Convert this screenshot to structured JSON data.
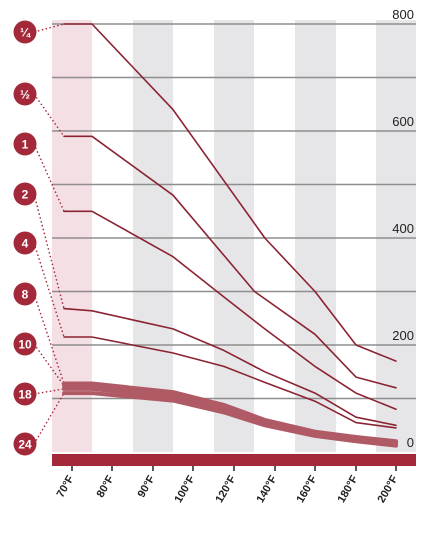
{
  "chart_data": {
    "type": "line",
    "title": "",
    "xlabel": "",
    "ylabel": "",
    "categories": [
      "70°F",
      "80°F",
      "90°F",
      "100°F",
      "120°F",
      "140°F",
      "160°F",
      "180°F",
      "200°F"
    ],
    "x_tick_labels": [
      "70°F",
      "80°F",
      "90°F",
      "100°F",
      "120°F",
      "140°F",
      "160°F",
      "180°F",
      "200°F"
    ],
    "y_tick_labels": [
      "0",
      "200",
      "400",
      "600",
      "800"
    ],
    "ylim": [
      0,
      800
    ],
    "y_axis_side": "right",
    "gridlines": "horizontal",
    "background_bands": "alternating shaded vertical columns",
    "legend": "left badges connected to line starts by dotted leaders",
    "series": [
      {
        "label": "¼",
        "points": [
          [
            68,
            800
          ],
          [
            75,
            800
          ],
          [
            95,
            640
          ],
          [
            135,
            400
          ],
          [
            160,
            300
          ],
          [
            180,
            200
          ],
          [
            200,
            170
          ]
        ]
      },
      {
        "label": "½",
        "points": [
          [
            68,
            590
          ],
          [
            75,
            590
          ],
          [
            95,
            480
          ],
          [
            130,
            300
          ],
          [
            160,
            220
          ],
          [
            180,
            140
          ],
          [
            200,
            120
          ]
        ]
      },
      {
        "label": "1",
        "points": [
          [
            68,
            450
          ],
          [
            75,
            450
          ],
          [
            95,
            365
          ],
          [
            115,
            290
          ],
          [
            135,
            230
          ],
          [
            160,
            160
          ],
          [
            180,
            110
          ],
          [
            200,
            80
          ]
        ]
      },
      {
        "label": "2",
        "points": [
          [
            68,
            268
          ],
          [
            75,
            264
          ],
          [
            95,
            230
          ],
          [
            115,
            190
          ],
          [
            135,
            150
          ],
          [
            160,
            110
          ],
          [
            180,
            65
          ],
          [
            200,
            50
          ]
        ]
      },
      {
        "label": "4",
        "points": [
          [
            68,
            215
          ],
          [
            75,
            215
          ],
          [
            95,
            185
          ],
          [
            115,
            160
          ],
          [
            135,
            130
          ],
          [
            160,
            95
          ],
          [
            180,
            55
          ],
          [
            200,
            45
          ]
        ]
      },
      {
        "label": "8",
        "points": [
          [
            68,
            128
          ],
          [
            75,
            128
          ],
          [
            95,
            112
          ],
          [
            115,
            88
          ],
          [
            135,
            60
          ],
          [
            160,
            38
          ],
          [
            180,
            28
          ],
          [
            200,
            20
          ]
        ]
      },
      {
        "label": "10",
        "points": [
          [
            68,
            124
          ],
          [
            75,
            124
          ],
          [
            95,
            108
          ],
          [
            115,
            84
          ],
          [
            135,
            57
          ],
          [
            160,
            36
          ],
          [
            180,
            26
          ],
          [
            200,
            18
          ]
        ]
      },
      {
        "label": "18",
        "points": [
          [
            68,
            118
          ],
          [
            75,
            118
          ],
          [
            95,
            102
          ],
          [
            115,
            80
          ],
          [
            135,
            55
          ],
          [
            160,
            34
          ],
          [
            180,
            24
          ],
          [
            200,
            16
          ]
        ]
      },
      {
        "label": "24",
        "points": [
          [
            68,
            110
          ],
          [
            75,
            110
          ],
          [
            95,
            96
          ],
          [
            115,
            74
          ],
          [
            135,
            50
          ],
          [
            160,
            30
          ],
          [
            180,
            20
          ],
          [
            200,
            12
          ]
        ]
      }
    ]
  },
  "colors": {
    "line": "#8b2332",
    "line_thick": "#b05a66",
    "badge": "#a3283a",
    "band": "#e6e6e8",
    "band_highlight": "#f4dfe4",
    "grid": "#8e8e8e",
    "base_bar": "#a3283a"
  }
}
